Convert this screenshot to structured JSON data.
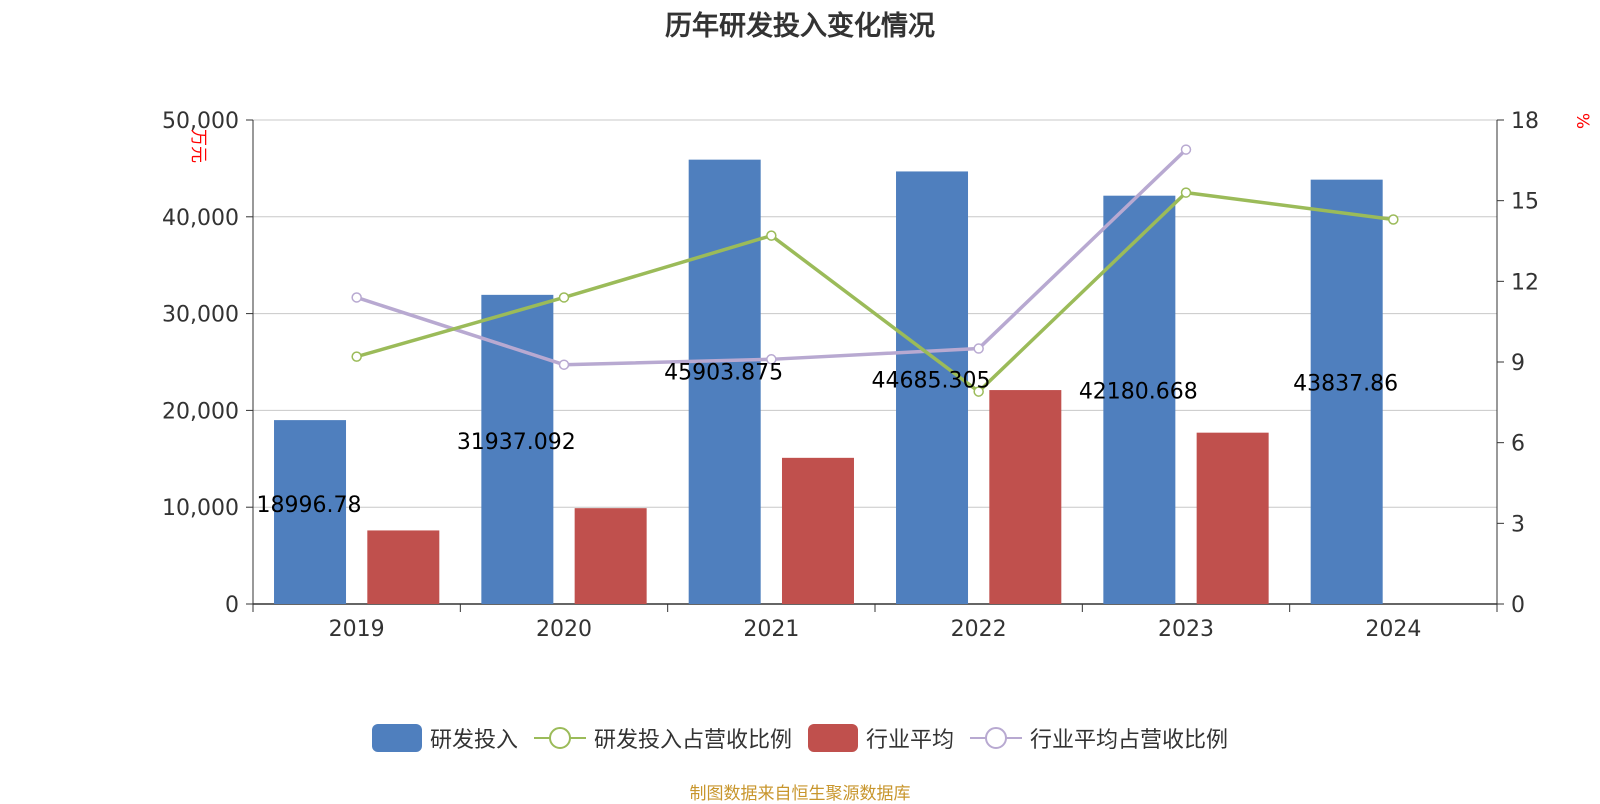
{
  "title": "历年研发投入变化情况",
  "source_note": "制图数据来自恒生聚源数据库",
  "colors": {
    "rd_bar": "#4f7fbe",
    "industry_bar": "#c0504d",
    "rd_ratio_line": "#9bbb59",
    "industry_ratio_line": "#b8a9d1",
    "unit_label": "#ff0000",
    "axis_text": "#333333",
    "grid": "#c8c8c8"
  },
  "chart_data": {
    "type": "bar",
    "categories": [
      "2019",
      "2020",
      "2021",
      "2022",
      "2023",
      "2024"
    ],
    "y_left": {
      "unit": "万元",
      "ylim": [
        0,
        50000
      ],
      "ticks": [
        "0",
        "10,000",
        "20,000",
        "30,000",
        "40,000",
        "50,000"
      ]
    },
    "y_right": {
      "unit": "%",
      "ylim": [
        0,
        18
      ],
      "ticks": [
        "0",
        "3",
        "6",
        "9",
        "12",
        "15",
        "18"
      ]
    },
    "series": [
      {
        "name": "研发投入",
        "kind": "bar",
        "axis": "left",
        "values": [
          18996.78,
          31937.092,
          45903.875,
          44685.305,
          42180.668,
          43837.86
        ],
        "labels": [
          "18996.78",
          "31937.092",
          "45903.875",
          "44685.305",
          "42180.668",
          "43837.86"
        ]
      },
      {
        "name": "行业平均",
        "kind": "bar",
        "axis": "left",
        "values": [
          7600,
          9900,
          15100,
          22100,
          17700,
          null
        ]
      },
      {
        "name": "研发投入占营收比例",
        "kind": "line",
        "axis": "right",
        "values": [
          9.2,
          11.4,
          13.7,
          7.9,
          15.3,
          14.3
        ]
      },
      {
        "name": "行业平均占营收比例",
        "kind": "line",
        "axis": "right",
        "values": [
          11.4,
          8.9,
          9.1,
          9.5,
          16.9,
          null
        ]
      }
    ],
    "grid": true,
    "legend_position": "bottom"
  }
}
